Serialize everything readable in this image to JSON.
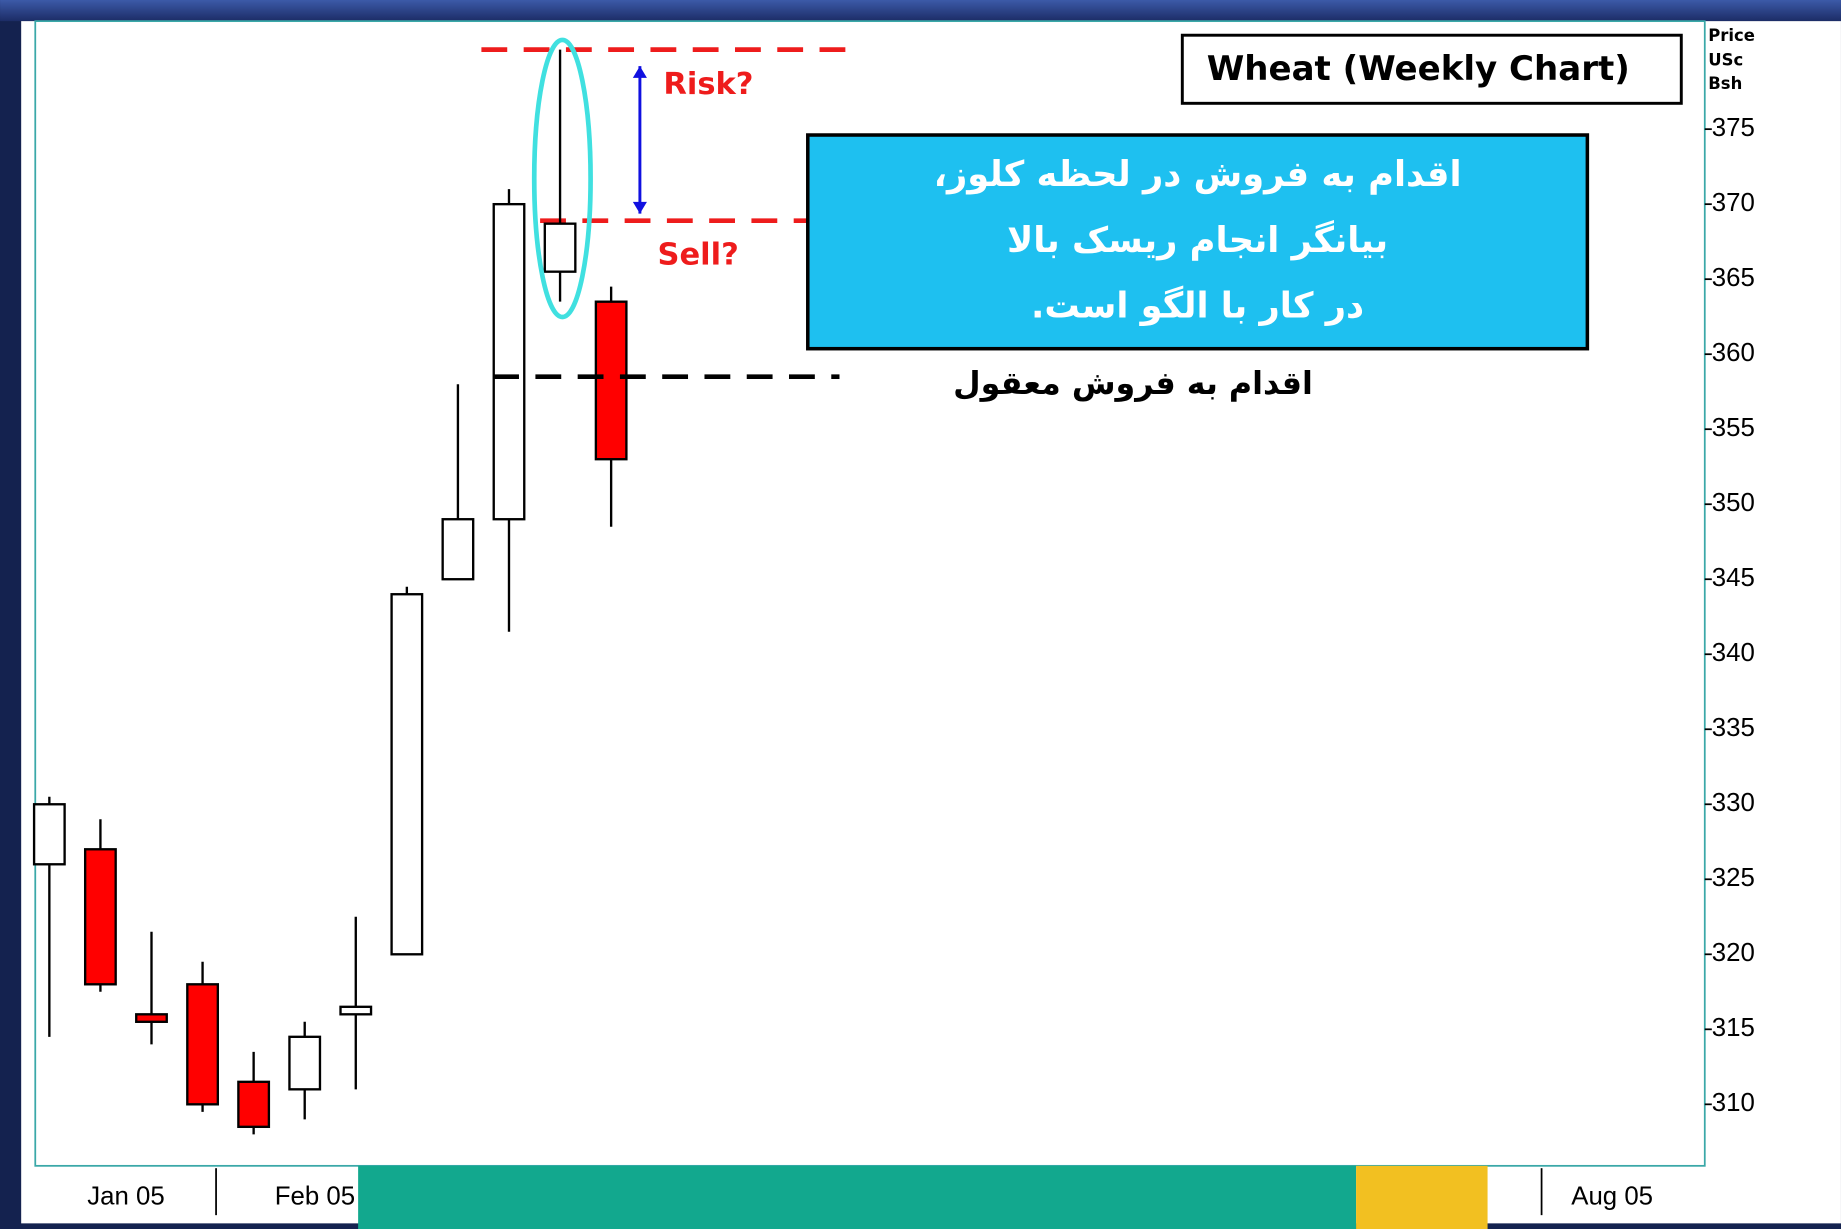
{
  "chart_data": {
    "type": "candlestick",
    "title": "Wheat  (Weekly Chart)",
    "y_axis_label": [
      "Price",
      "USc",
      "Bsh"
    ],
    "categories": [
      null,
      null,
      null,
      null,
      null,
      null,
      null,
      null,
      null,
      null,
      null,
      null
    ],
    "x_axis_labels": [
      "Jan 05",
      "Feb 05",
      "Aug 05"
    ],
    "open": [
      326,
      327,
      316,
      318,
      311.5,
      311,
      316,
      320,
      345,
      349,
      365.5,
      363.5
    ],
    "high": [
      330.5,
      329,
      321.5,
      319.5,
      313.5,
      315.5,
      322.5,
      344.5,
      358,
      371,
      380.3,
      364.5
    ],
    "low": [
      314.5,
      317.5,
      314,
      309.5,
      308,
      309,
      311,
      320,
      345,
      341.5,
      363.5,
      348.5
    ],
    "close": [
      330,
      318,
      315.5,
      310,
      308.5,
      314.5,
      316.5,
      344,
      349,
      370,
      368.7,
      353
    ],
    "up_color": "#ffffff",
    "down_color": "#ff0000",
    "ylim": [
      305.9,
      382.2
    ],
    "yticks": [
      310,
      315,
      320,
      325,
      330,
      335,
      340,
      345,
      350,
      355,
      360,
      365,
      370,
      375
    ],
    "annotations": {
      "risk": {
        "text": "Risk?",
        "value": 380.3
      },
      "sell": {
        "text": "Sell?",
        "value": 368.9
      },
      "reasonable_sell": {
        "text": "اقدام به فروش معقول",
        "value": 358.5
      },
      "note": [
        "اقدام به فروش در لحظه کلوز،",
        "بیانگر انجام ریسک بالا",
        "در کار با الگو است."
      ]
    }
  }
}
